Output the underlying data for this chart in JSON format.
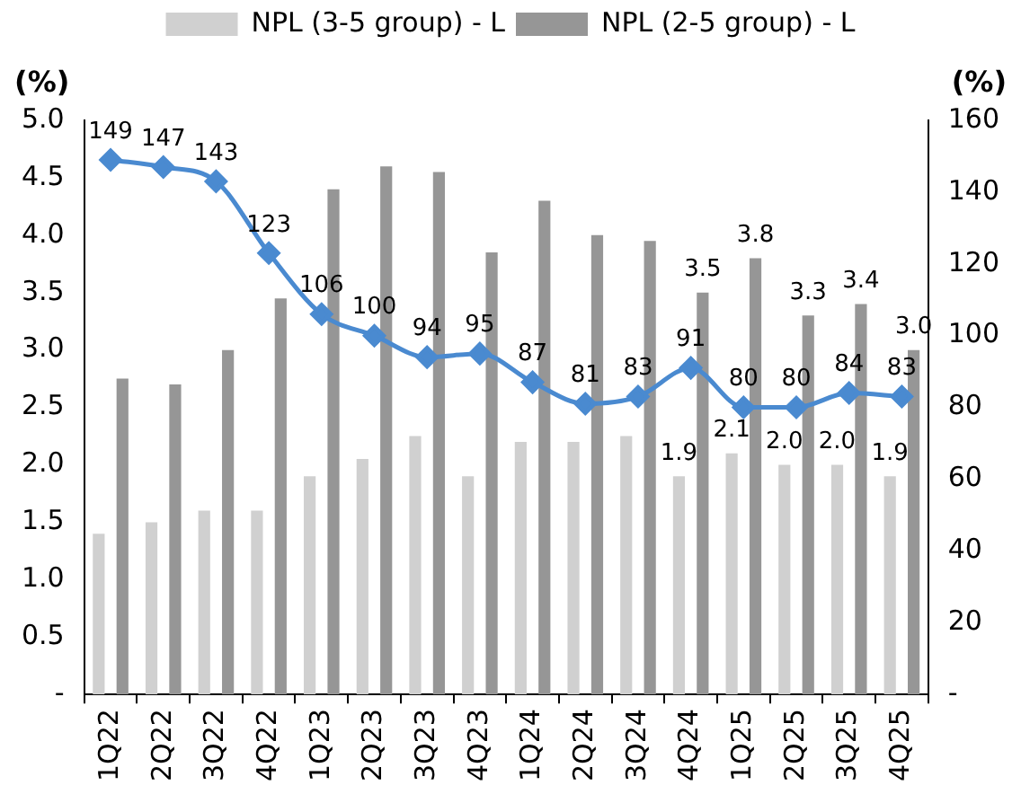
{
  "chart_data": {
    "type": "bar",
    "ylabel": "(%)",
    "y2label": "(%)",
    "categories": [
      "1Q22",
      "2Q22",
      "3Q22",
      "4Q22",
      "1Q23",
      "2Q23",
      "3Q23",
      "4Q23",
      "1Q24",
      "2Q24",
      "3Q24",
      "4Q24",
      "1Q25",
      "2Q25",
      "3Q25",
      "4Q25"
    ],
    "series": [
      {
        "name": "NPL (3-5 group) - L",
        "color": "#d0d0d0",
        "values": [
          1.4,
          1.5,
          1.6,
          1.6,
          1.9,
          2.05,
          2.25,
          1.9,
          2.2,
          2.2,
          2.25,
          1.9,
          2.1,
          2.0,
          2.0,
          1.9
        ],
        "value_labels": [
          null,
          null,
          null,
          null,
          null,
          null,
          null,
          null,
          null,
          null,
          null,
          "1.9",
          "2.1",
          "2.0",
          "2.0",
          "1.9"
        ]
      },
      {
        "name": "NPL (2-5 group) - L",
        "color": "#969696",
        "values": [
          2.75,
          2.7,
          3.0,
          3.45,
          4.4,
          4.6,
          4.55,
          3.85,
          4.3,
          4.0,
          3.95,
          3.5,
          3.8,
          3.3,
          3.4,
          3.0
        ],
        "value_labels": [
          null,
          null,
          null,
          null,
          null,
          null,
          null,
          null,
          null,
          null,
          null,
          "3.5",
          "3.8",
          "3.3",
          "3.4",
          "3.0"
        ]
      },
      {
        "type": "line",
        "axis": "y2",
        "color": "#4a8ad0",
        "marker": "diamond",
        "values": [
          149,
          147,
          143,
          123,
          106,
          100,
          94,
          95,
          87,
          81,
          83,
          91,
          80,
          80,
          84,
          83
        ],
        "value_labels": [
          "149",
          "147",
          "143",
          "123",
          "106",
          "100",
          "94",
          "95",
          "87",
          "81",
          "83",
          "91",
          "80",
          "80",
          "84",
          "83"
        ]
      }
    ],
    "ylim": [
      0,
      5
    ],
    "yticks": [
      {
        "value": 0,
        "label": "-"
      },
      0.5,
      {
        "value": 1,
        "label": "1.0"
      },
      1.5,
      {
        "value": 2,
        "label": "2.0"
      },
      2.5,
      {
        "value": 3,
        "label": "3.0"
      },
      3.5,
      {
        "value": 4,
        "label": "4.0"
      },
      4.5,
      {
        "value": 5,
        "label": "5.0"
      }
    ],
    "y2lim": [
      0,
      160
    ],
    "y2ticks": [
      {
        "value": 0,
        "label": "-"
      },
      20,
      40,
      60,
      80,
      100,
      120,
      140,
      160
    ],
    "legend": "top",
    "grid": false
  }
}
